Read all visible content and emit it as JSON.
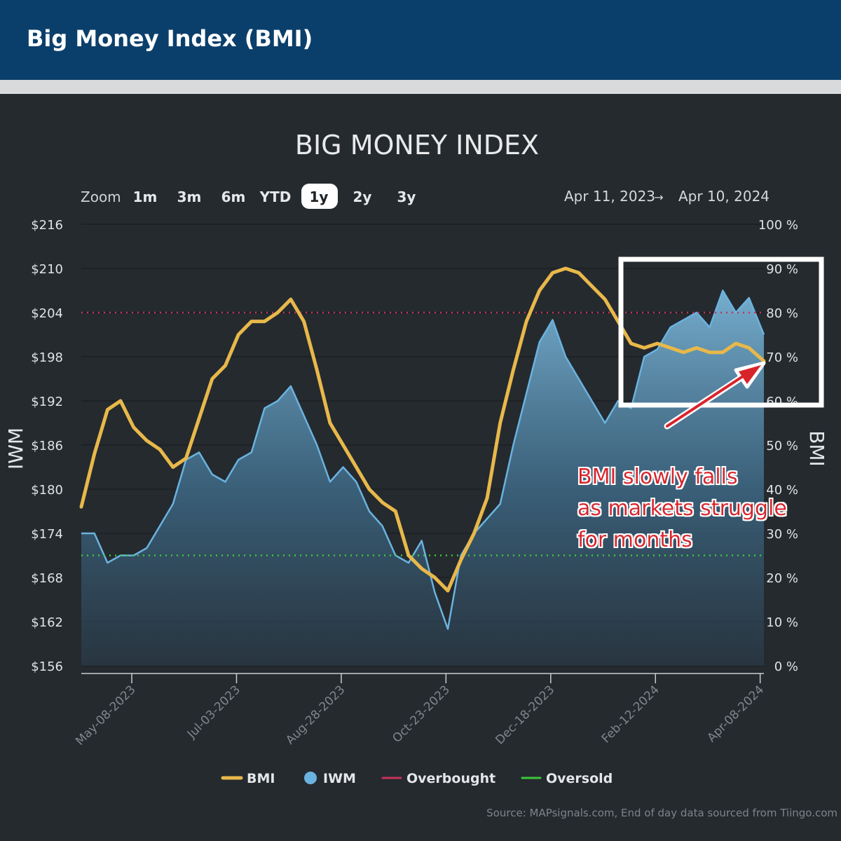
{
  "header": {
    "title": "Big Money Index (BMI)"
  },
  "chart_title": "BIG MONEY INDEX",
  "zoom": {
    "label": "Zoom",
    "buttons": [
      "1m",
      "3m",
      "6m",
      "YTD",
      "1y",
      "2y",
      "3y"
    ],
    "selected": "1y"
  },
  "date_range": {
    "from": "Apr 11, 2023",
    "arrow": "→",
    "to": "Apr 10, 2024"
  },
  "annotation": {
    "lines": [
      "BMI slowly falls",
      "as markets struggle",
      "for months"
    ]
  },
  "legend": [
    {
      "label": "BMI",
      "color": "#e8b84a"
    },
    {
      "label": "IWM",
      "color": "#6ab3e0"
    },
    {
      "label": "Overbought",
      "color": "#c8325a"
    },
    {
      "label": "Oversold",
      "color": "#3cc83c"
    }
  ],
  "source": "Source: MAPsignals.com, End of day data sourced from Tiingo.com",
  "chart_data": {
    "type": "line",
    "x_range": [
      "2023-04-11",
      "2024-04-10"
    ],
    "x_ticks": [
      "May-08-2023",
      "Jul-03-2023",
      "Aug-28-2023",
      "Oct-23-2023",
      "Dec-18-2023",
      "Feb-12-2024",
      "Apr-08-2024"
    ],
    "left_axis": {
      "label": "IWM",
      "ticks": [
        "$156",
        "$162",
        "$168",
        "$174",
        "$180",
        "$186",
        "$192",
        "$198",
        "$204",
        "$210",
        "$216"
      ],
      "ylim": [
        156,
        216
      ]
    },
    "right_axis": {
      "label": "BMI",
      "ticks": [
        "0 %",
        "10 %",
        "20 %",
        "30 %",
        "40 %",
        "50 %",
        "60 %",
        "70 %",
        "80 %",
        "90 %",
        "100 %"
      ],
      "ylim": [
        0,
        100
      ]
    },
    "overbought": 80,
    "oversold": 25,
    "series": [
      {
        "name": "BMI",
        "axis": "right",
        "x": [
          "2023-04-11",
          "2023-04-18",
          "2023-04-25",
          "2023-05-02",
          "2023-05-09",
          "2023-05-16",
          "2023-05-23",
          "2023-05-30",
          "2023-06-06",
          "2023-06-13",
          "2023-06-20",
          "2023-06-27",
          "2023-07-04",
          "2023-07-11",
          "2023-07-18",
          "2023-07-25",
          "2023-08-01",
          "2023-08-08",
          "2023-08-15",
          "2023-08-22",
          "2023-08-29",
          "2023-09-05",
          "2023-09-12",
          "2023-09-19",
          "2023-09-26",
          "2023-10-03",
          "2023-10-10",
          "2023-10-17",
          "2023-10-24",
          "2023-10-31",
          "2023-11-07",
          "2023-11-14",
          "2023-11-21",
          "2023-11-28",
          "2023-12-05",
          "2023-12-12",
          "2023-12-19",
          "2023-12-26",
          "2024-01-02",
          "2024-01-09",
          "2024-01-16",
          "2024-01-23",
          "2024-01-30",
          "2024-02-06",
          "2024-02-13",
          "2024-02-20",
          "2024-02-27",
          "2024-03-05",
          "2024-03-12",
          "2024-03-19",
          "2024-03-26",
          "2024-04-02",
          "2024-04-10"
        ],
        "values": [
          36,
          48,
          58,
          60,
          54,
          51,
          49,
          45,
          47,
          56,
          65,
          68,
          75,
          78,
          78,
          80,
          83,
          78,
          67,
          55,
          50,
          45,
          40,
          37,
          35,
          25,
          22,
          20,
          17,
          24,
          30,
          38,
          55,
          67,
          78,
          85,
          89,
          90,
          89,
          86,
          83,
          78,
          73,
          72,
          73,
          72,
          71,
          72,
          71,
          71,
          73,
          72,
          69
        ]
      },
      {
        "name": "IWM",
        "axis": "left",
        "x": [
          "2023-04-11",
          "2023-04-18",
          "2023-04-25",
          "2023-05-02",
          "2023-05-09",
          "2023-05-16",
          "2023-05-23",
          "2023-05-30",
          "2023-06-06",
          "2023-06-13",
          "2023-06-20",
          "2023-06-27",
          "2023-07-04",
          "2023-07-11",
          "2023-07-18",
          "2023-07-25",
          "2023-08-01",
          "2023-08-08",
          "2023-08-15",
          "2023-08-22",
          "2023-08-29",
          "2023-09-05",
          "2023-09-12",
          "2023-09-19",
          "2023-09-26",
          "2023-10-03",
          "2023-10-10",
          "2023-10-17",
          "2023-10-24",
          "2023-10-31",
          "2023-11-07",
          "2023-11-14",
          "2023-11-21",
          "2023-11-28",
          "2023-12-05",
          "2023-12-12",
          "2023-12-19",
          "2023-12-26",
          "2024-01-02",
          "2024-01-09",
          "2024-01-16",
          "2024-01-23",
          "2024-01-30",
          "2024-02-06",
          "2024-02-13",
          "2024-02-20",
          "2024-02-27",
          "2024-03-05",
          "2024-03-12",
          "2024-03-19",
          "2024-03-26",
          "2024-04-02",
          "2024-04-10"
        ],
        "values": [
          174,
          174,
          170,
          171,
          171,
          172,
          175,
          178,
          184,
          185,
          182,
          181,
          184,
          185,
          191,
          192,
          194,
          190,
          186,
          181,
          183,
          181,
          177,
          175,
          171,
          170,
          173,
          166,
          161,
          171,
          174,
          176,
          178,
          186,
          193,
          200,
          203,
          198,
          195,
          192,
          189,
          192,
          191,
          198,
          199,
          202,
          203,
          204,
          202,
          207,
          204,
          206,
          201
        ]
      }
    ]
  }
}
